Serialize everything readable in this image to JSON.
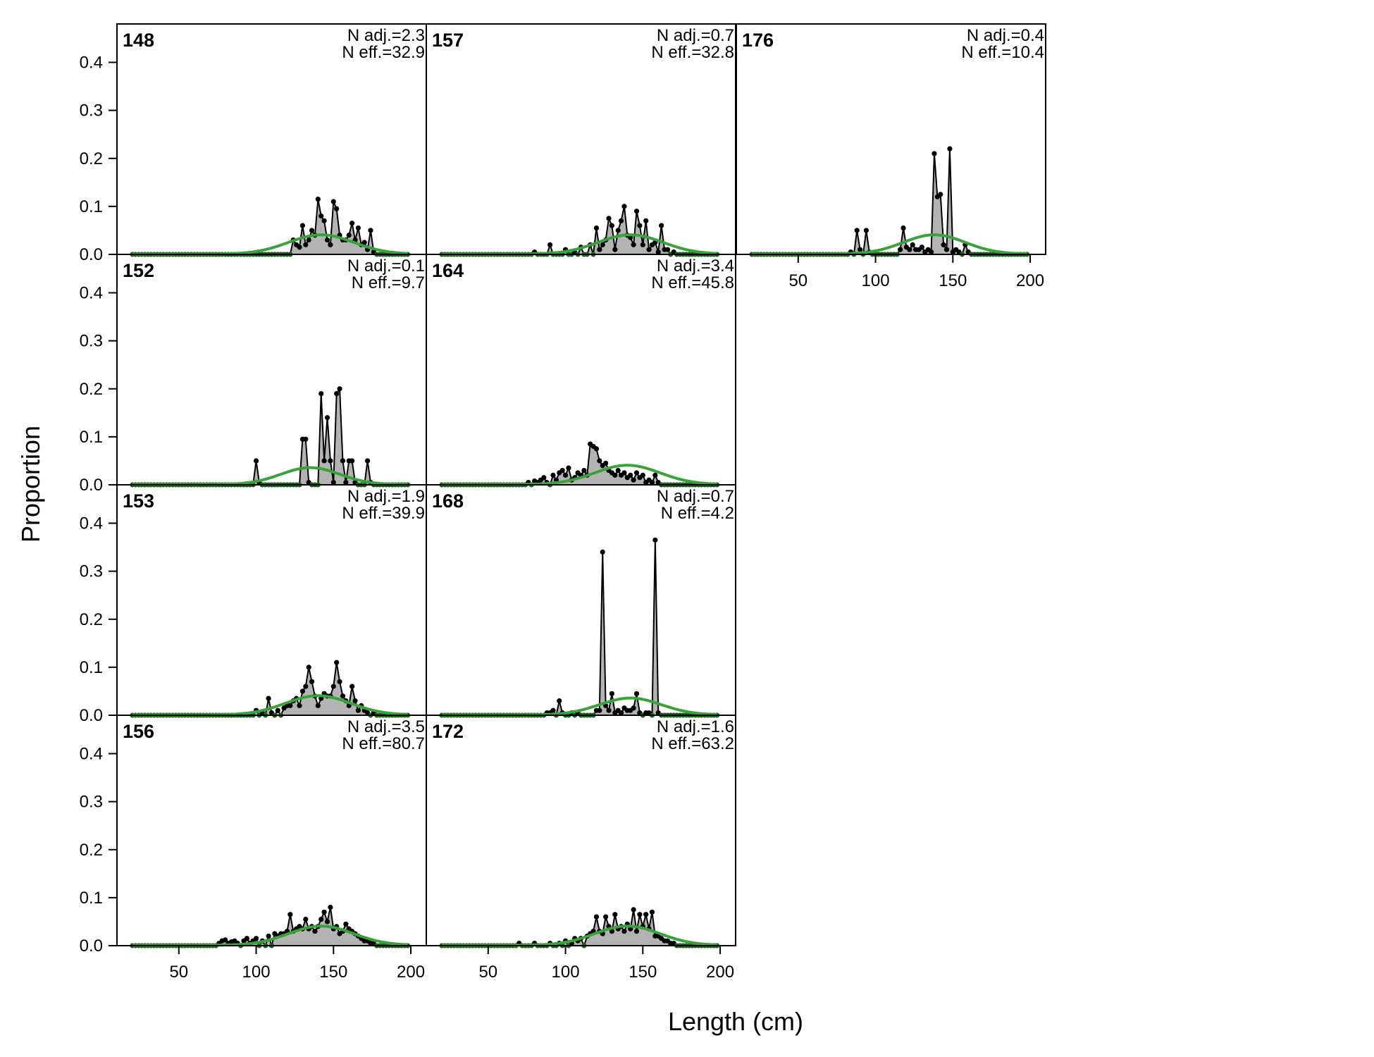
{
  "chart_data": {
    "type": "line",
    "xlabel": "Length (cm)",
    "ylabel": "Proportion",
    "xlim": [
      10,
      210
    ],
    "ylim": [
      0,
      0.48
    ],
    "x_ticks": [
      50,
      100,
      150,
      200
    ],
    "y_ticks": [
      0.0,
      0.1,
      0.2,
      0.3,
      0.4
    ],
    "x_tick_labels": [
      "50",
      "100",
      "150",
      "200"
    ],
    "y_tick_labels": [
      "0.0",
      "0.1",
      "0.2",
      "0.3",
      "0.4"
    ],
    "bin_start": 20,
    "bin_end": 198,
    "bin_width": 2,
    "observed_color": "#000000",
    "observed_fill": "#b3b3b3",
    "expected_color": "#3aa23a",
    "panels": [
      {
        "id": "148",
        "n_adj": "N adj.=2.3",
        "n_eff": "N eff.=32.9",
        "observed": [
          [
            124,
            0.03
          ],
          [
            126,
            0.02
          ],
          [
            128,
            0.015
          ],
          [
            130,
            0.06
          ],
          [
            132,
            0.02
          ],
          [
            134,
            0.03
          ],
          [
            136,
            0.05
          ],
          [
            138,
            0.04
          ],
          [
            140,
            0.115
          ],
          [
            142,
            0.08
          ],
          [
            144,
            0.07
          ],
          [
            146,
            0.03
          ],
          [
            148,
            0.02
          ],
          [
            150,
            0.11
          ],
          [
            152,
            0.095
          ],
          [
            154,
            0.04
          ],
          [
            156,
            0.03
          ],
          [
            158,
            0.03
          ],
          [
            160,
            0.04
          ],
          [
            162,
            0.065
          ],
          [
            164,
            0.03
          ],
          [
            166,
            0.055
          ],
          [
            168,
            0.02
          ],
          [
            170,
            0.025
          ],
          [
            172,
            0.01
          ],
          [
            174,
            0.05
          ],
          [
            176,
            0.005
          ]
        ],
        "expected_mean": 142,
        "expected_sd": 21,
        "expected_peak": 0.04
      },
      {
        "id": "157",
        "n_adj": "N adj.=0.7",
        "n_eff": "N eff.=32.8",
        "observed": [
          [
            80,
            0.005
          ],
          [
            90,
            0.02
          ],
          [
            100,
            0.01
          ],
          [
            106,
            0.005
          ],
          [
            110,
            0.015
          ],
          [
            116,
            0.02
          ],
          [
            120,
            0.055
          ],
          [
            122,
            0.01
          ],
          [
            124,
            0.02
          ],
          [
            126,
            0.03
          ],
          [
            128,
            0.075
          ],
          [
            130,
            0.06
          ],
          [
            132,
            0.01
          ],
          [
            134,
            0.05
          ],
          [
            136,
            0.07
          ],
          [
            138,
            0.1
          ],
          [
            140,
            0.04
          ],
          [
            142,
            0.035
          ],
          [
            144,
            0.02
          ],
          [
            146,
            0.09
          ],
          [
            148,
            0.06
          ],
          [
            150,
            0.02
          ],
          [
            152,
            0.07
          ],
          [
            154,
            0.01
          ],
          [
            156,
            0.02
          ],
          [
            158,
            0.025
          ],
          [
            160,
            0.005
          ],
          [
            162,
            0.06
          ],
          [
            164,
            0.01
          ],
          [
            166,
            0.01
          ],
          [
            170,
            0.005
          ]
        ],
        "expected_mean": 142,
        "expected_sd": 21,
        "expected_peak": 0.04
      },
      {
        "id": "176",
        "n_adj": "N adj.=0.4",
        "n_eff": "N eff.=10.4",
        "observed": [
          [
            84,
            0.005
          ],
          [
            88,
            0.05
          ],
          [
            90,
            0.01
          ],
          [
            94,
            0.05
          ],
          [
            96,
            0.005
          ],
          [
            116,
            0.01
          ],
          [
            118,
            0.055
          ],
          [
            120,
            0.015
          ],
          [
            122,
            0.01
          ],
          [
            124,
            0.02
          ],
          [
            126,
            0.01
          ],
          [
            128,
            0.01
          ],
          [
            130,
            0.015
          ],
          [
            132,
            0.005
          ],
          [
            134,
            0.01
          ],
          [
            136,
            0.005
          ],
          [
            138,
            0.21
          ],
          [
            140,
            0.12
          ],
          [
            142,
            0.125
          ],
          [
            144,
            0.02
          ],
          [
            146,
            0.01
          ],
          [
            148,
            0.22
          ],
          [
            150,
            0.005
          ],
          [
            152,
            0.01
          ],
          [
            154,
            0.005
          ],
          [
            158,
            0.02
          ],
          [
            160,
            0.005
          ]
        ],
        "expected_mean": 138,
        "expected_sd": 20,
        "expected_peak": 0.04
      },
      {
        "id": "152",
        "n_adj": "N adj.=0.1",
        "n_eff": "N eff.=9.7",
        "observed": [
          [
            100,
            0.05
          ],
          [
            102,
            0.005
          ],
          [
            130,
            0.095
          ],
          [
            132,
            0.095
          ],
          [
            134,
            0.005
          ],
          [
            142,
            0.19
          ],
          [
            144,
            0.05
          ],
          [
            146,
            0.14
          ],
          [
            148,
            0.05
          ],
          [
            150,
            0.005
          ],
          [
            152,
            0.19
          ],
          [
            154,
            0.2
          ],
          [
            156,
            0.05
          ],
          [
            158,
            0.005
          ],
          [
            160,
            0.05
          ],
          [
            162,
            0.05
          ],
          [
            164,
            0.005
          ],
          [
            172,
            0.05
          ],
          [
            174,
            0.005
          ]
        ],
        "expected_mean": 135,
        "expected_sd": 19,
        "expected_peak": 0.035
      },
      {
        "id": "164",
        "n_adj": "N adj.=3.4",
        "n_eff": "N eff.=45.8",
        "observed": [
          [
            76,
            0.005
          ],
          [
            80,
            0.008
          ],
          [
            82,
            0.005
          ],
          [
            84,
            0.01
          ],
          [
            86,
            0.015
          ],
          [
            88,
            0.005
          ],
          [
            92,
            0.02
          ],
          [
            94,
            0.01
          ],
          [
            96,
            0.025
          ],
          [
            98,
            0.03
          ],
          [
            100,
            0.02
          ],
          [
            102,
            0.035
          ],
          [
            104,
            0.01
          ],
          [
            106,
            0.015
          ],
          [
            108,
            0.025
          ],
          [
            110,
            0.02
          ],
          [
            112,
            0.03
          ],
          [
            114,
            0.02
          ],
          [
            116,
            0.085
          ],
          [
            118,
            0.08
          ],
          [
            120,
            0.075
          ],
          [
            122,
            0.05
          ],
          [
            124,
            0.04
          ],
          [
            126,
            0.045
          ],
          [
            128,
            0.03
          ],
          [
            130,
            0.025
          ],
          [
            132,
            0.02
          ],
          [
            134,
            0.03
          ],
          [
            136,
            0.02
          ],
          [
            138,
            0.025
          ],
          [
            140,
            0.015
          ],
          [
            142,
            0.02
          ],
          [
            144,
            0.01
          ],
          [
            146,
            0.025
          ],
          [
            148,
            0.015
          ],
          [
            150,
            0.02
          ],
          [
            152,
            0.005
          ],
          [
            154,
            0.01
          ],
          [
            156,
            0.005
          ],
          [
            158,
            0.02
          ],
          [
            160,
            0.005
          ]
        ],
        "expected_mean": 140,
        "expected_sd": 21,
        "expected_peak": 0.04
      },
      {
        "id": "153",
        "n_adj": "N adj.=1.9",
        "n_eff": "N eff.=39.9",
        "observed": [
          [
            100,
            0.01
          ],
          [
            104,
            0.005
          ],
          [
            108,
            0.035
          ],
          [
            110,
            0.005
          ],
          [
            114,
            0.01
          ],
          [
            118,
            0.015
          ],
          [
            120,
            0.02
          ],
          [
            122,
            0.02
          ],
          [
            124,
            0.03
          ],
          [
            126,
            0.035
          ],
          [
            128,
            0.02
          ],
          [
            130,
            0.05
          ],
          [
            132,
            0.06
          ],
          [
            134,
            0.1
          ],
          [
            136,
            0.07
          ],
          [
            138,
            0.04
          ],
          [
            140,
            0.02
          ],
          [
            142,
            0.035
          ],
          [
            144,
            0.045
          ],
          [
            146,
            0.04
          ],
          [
            148,
            0.04
          ],
          [
            150,
            0.06
          ],
          [
            152,
            0.11
          ],
          [
            154,
            0.07
          ],
          [
            156,
            0.04
          ],
          [
            158,
            0.03
          ],
          [
            160,
            0.02
          ],
          [
            162,
            0.06
          ],
          [
            164,
            0.03
          ],
          [
            166,
            0.01
          ],
          [
            168,
            0.02
          ],
          [
            170,
            0.01
          ],
          [
            172,
            0.005
          ],
          [
            176,
            0.005
          ]
        ],
        "expected_mean": 140,
        "expected_sd": 21,
        "expected_peak": 0.04
      },
      {
        "id": "168",
        "n_adj": "N adj.=0.7",
        "n_eff": "N eff.=4.2",
        "observed": [
          [
            88,
            0.005
          ],
          [
            90,
            0.005
          ],
          [
            92,
            0.01
          ],
          [
            96,
            0.03
          ],
          [
            98,
            0.005
          ],
          [
            104,
            0.005
          ],
          [
            108,
            0.005
          ],
          [
            120,
            0.01
          ],
          [
            122,
            0.01
          ],
          [
            124,
            0.34
          ],
          [
            126,
            0.02
          ],
          [
            128,
            0.01
          ],
          [
            130,
            0.045
          ],
          [
            132,
            0.005
          ],
          [
            134,
            0.01
          ],
          [
            136,
            0.005
          ],
          [
            138,
            0.015
          ],
          [
            140,
            0.01
          ],
          [
            142,
            0.01
          ],
          [
            144,
            0.015
          ],
          [
            146,
            0.045
          ],
          [
            148,
            0.005
          ],
          [
            152,
            0.005
          ],
          [
            154,
            0.005
          ],
          [
            158,
            0.365
          ],
          [
            160,
            0.005
          ]
        ],
        "expected_mean": 142,
        "expected_sd": 20,
        "expected_peak": 0.035
      },
      {
        "id": "156",
        "n_adj": "N adj.=3.5",
        "n_eff": "N eff.=80.7",
        "observed": [
          [
            76,
            0.005
          ],
          [
            78,
            0.01
          ],
          [
            80,
            0.012
          ],
          [
            82,
            0.005
          ],
          [
            84,
            0.008
          ],
          [
            86,
            0.01
          ],
          [
            88,
            0.005
          ],
          [
            92,
            0.01
          ],
          [
            94,
            0.015
          ],
          [
            96,
            0.005
          ],
          [
            98,
            0.01
          ],
          [
            100,
            0.015
          ],
          [
            104,
            0.01
          ],
          [
            108,
            0.02
          ],
          [
            112,
            0.025
          ],
          [
            114,
            0.02
          ],
          [
            116,
            0.025
          ],
          [
            118,
            0.025
          ],
          [
            120,
            0.03
          ],
          [
            122,
            0.065
          ],
          [
            124,
            0.03
          ],
          [
            126,
            0.035
          ],
          [
            128,
            0.04
          ],
          [
            130,
            0.035
          ],
          [
            132,
            0.055
          ],
          [
            134,
            0.035
          ],
          [
            136,
            0.04
          ],
          [
            138,
            0.03
          ],
          [
            140,
            0.04
          ],
          [
            142,
            0.055
          ],
          [
            144,
            0.07
          ],
          [
            146,
            0.05
          ],
          [
            148,
            0.08
          ],
          [
            150,
            0.035
          ],
          [
            152,
            0.04
          ],
          [
            154,
            0.025
          ],
          [
            156,
            0.03
          ],
          [
            158,
            0.045
          ],
          [
            160,
            0.035
          ],
          [
            162,
            0.03
          ],
          [
            164,
            0.025
          ],
          [
            166,
            0.02
          ],
          [
            168,
            0.015
          ],
          [
            170,
            0.01
          ],
          [
            172,
            0.01
          ],
          [
            174,
            0.005
          ],
          [
            176,
            0.005
          ]
        ],
        "expected_mean": 142,
        "expected_sd": 21,
        "expected_peak": 0.04
      },
      {
        "id": "172",
        "n_adj": "N adj.=1.6",
        "n_eff": "N eff.=63.2",
        "observed": [
          [
            70,
            0.005
          ],
          [
            80,
            0.005
          ],
          [
            90,
            0.005
          ],
          [
            96,
            0.005
          ],
          [
            100,
            0.01
          ],
          [
            104,
            0.005
          ],
          [
            106,
            0.015
          ],
          [
            108,
            0.01
          ],
          [
            110,
            0.015
          ],
          [
            114,
            0.02
          ],
          [
            116,
            0.025
          ],
          [
            118,
            0.03
          ],
          [
            120,
            0.06
          ],
          [
            122,
            0.03
          ],
          [
            124,
            0.025
          ],
          [
            126,
            0.06
          ],
          [
            128,
            0.04
          ],
          [
            130,
            0.03
          ],
          [
            132,
            0.065
          ],
          [
            134,
            0.035
          ],
          [
            136,
            0.04
          ],
          [
            138,
            0.03
          ],
          [
            140,
            0.045
          ],
          [
            142,
            0.035
          ],
          [
            144,
            0.075
          ],
          [
            146,
            0.03
          ],
          [
            148,
            0.065
          ],
          [
            150,
            0.04
          ],
          [
            152,
            0.065
          ],
          [
            154,
            0.035
          ],
          [
            156,
            0.07
          ],
          [
            158,
            0.02
          ],
          [
            160,
            0.02
          ],
          [
            162,
            0.015
          ],
          [
            164,
            0.01
          ],
          [
            166,
            0.01
          ],
          [
            168,
            0.005
          ],
          [
            170,
            0.005
          ]
        ],
        "expected_mean": 140,
        "expected_sd": 21,
        "expected_peak": 0.04
      }
    ]
  }
}
